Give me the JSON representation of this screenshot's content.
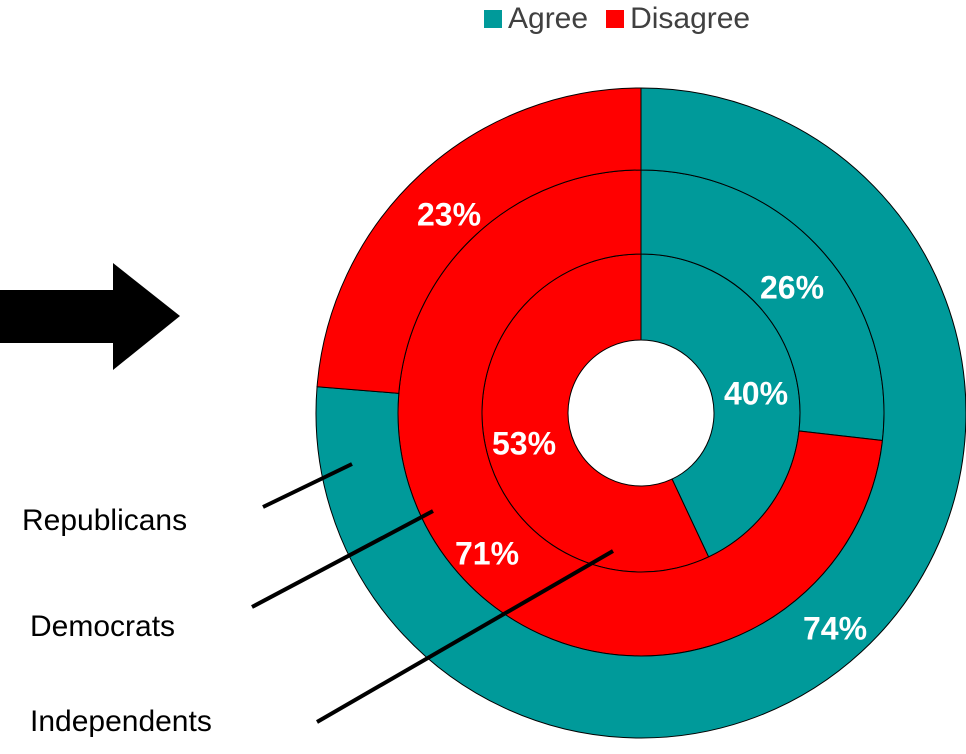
{
  "colors": {
    "agree": "#009a9a",
    "disagree": "#ff0000",
    "arrow": "#000000"
  },
  "legend": {
    "agree_label": "Agree",
    "disagree_label": "Disagree"
  },
  "chart_data": {
    "type": "pie",
    "subtype": "multi-level doughnut",
    "legend": [
      "Agree",
      "Disagree"
    ],
    "legend_position": "top-right",
    "rings": [
      {
        "name": "Independents",
        "order": "inner",
        "agree": 40,
        "disagree": 53,
        "agree_label": "40%",
        "disagree_label": "53%"
      },
      {
        "name": "Democrats",
        "order": "middle",
        "agree": 26,
        "disagree": 71,
        "agree_label": "26%",
        "disagree_label": "71%"
      },
      {
        "name": "Republicans",
        "order": "outer",
        "agree": 74,
        "disagree": 23,
        "agree_label": "74%",
        "disagree_label": "23%"
      }
    ]
  }
}
